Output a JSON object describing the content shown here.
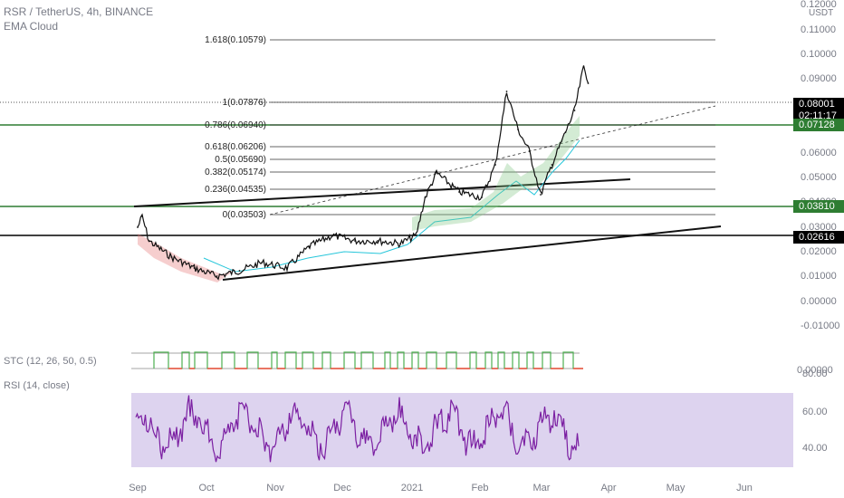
{
  "header": {
    "symbol_line": "RSR / TetherUS, 4h, BINANCE",
    "indicator": "EMA Cloud"
  },
  "price_axis": {
    "unit": "USDT",
    "top_label": "0.12000",
    "ticks": [
      "0.11000",
      "0.10000",
      "0.09000",
      "0.08000",
      "0.07000",
      "0.06000",
      "0.05000",
      "0.04000",
      "0.03000",
      "0.02000",
      "0.01000",
      "0.00000",
      "-0.01000"
    ]
  },
  "price_tags": {
    "last": {
      "price": "0.08001",
      "countdown": "02:11:17"
    },
    "green_upper": "0.07128",
    "green_lower": "0.03810",
    "black_level": "0.02616"
  },
  "fib_levels": [
    {
      "label": "1.618(0.10579)",
      "value": 0.10579
    },
    {
      "label": "1(0.07876)",
      "value": 0.07876
    },
    {
      "label": "0.786(0.06940)",
      "value": 0.0694
    },
    {
      "label": "0.618(0.06206)",
      "value": 0.06206
    },
    {
      "label": "0.5(0.05690)",
      "value": 0.0569
    },
    {
      "label": "0.382(0.05174)",
      "value": 0.05174
    },
    {
      "label": "0.236(0.04535)",
      "value": 0.04535
    },
    {
      "label": "0(0.03503)",
      "value": 0.03503
    }
  ],
  "stc": {
    "label": "STC (12, 26, 50, 0.5)",
    "axis_label": "0.00000"
  },
  "rsi": {
    "label": "RSI (14, close)",
    "ticks": [
      "80.00",
      "60.00",
      "40.00"
    ],
    "band": [
      30,
      70
    ]
  },
  "time_axis": [
    "Sep",
    "Oct",
    "Nov",
    "Dec",
    "2021",
    "Feb",
    "Mar",
    "Apr",
    "May",
    "Jun"
  ],
  "colors": {
    "green_level": "#2e7d32",
    "black_level": "#000000",
    "rsi_line": "#7b1fa2",
    "rsi_band": "#d1c4e9",
    "stc_up": "#4caf50",
    "stc_down": "#f44336",
    "ema_fast": "#26c6da",
    "cloud_bear": "#e57373",
    "cloud_bull": "#81c784",
    "last_tag_bg": "#000000",
    "green_tag_bg": "#2e7d32"
  },
  "chart_data": {
    "type": "candlestick",
    "title": "RSR / TetherUS, 4h, BINANCE",
    "ylim": [
      -0.015,
      0.12
    ],
    "price_path": [
      {
        "t": "Aug 31",
        "close": 0.027
      },
      {
        "t": "Sep 2",
        "close": 0.031
      },
      {
        "t": "Sep 5",
        "close": 0.022
      },
      {
        "t": "Sep 15",
        "close": 0.016
      },
      {
        "t": "Sep 25",
        "close": 0.012
      },
      {
        "t": "Oct 5",
        "close": 0.009
      },
      {
        "t": "Oct 15",
        "close": 0.011
      },
      {
        "t": "Oct 25",
        "close": 0.014
      },
      {
        "t": "Nov 5",
        "close": 0.012
      },
      {
        "t": "Nov 15",
        "close": 0.02
      },
      {
        "t": "Nov 25",
        "close": 0.024
      },
      {
        "t": "Dec 5",
        "close": 0.022
      },
      {
        "t": "Dec 15",
        "close": 0.022
      },
      {
        "t": "Dec 25",
        "close": 0.021
      },
      {
        "t": "Jan 1",
        "close": 0.024
      },
      {
        "t": "Jan 5",
        "close": 0.038
      },
      {
        "t": "Jan 10",
        "close": 0.047
      },
      {
        "t": "Jan 20",
        "close": 0.04
      },
      {
        "t": "Jan 30",
        "close": 0.038
      },
      {
        "t": "Feb 5",
        "close": 0.05
      },
      {
        "t": "Feb 10",
        "close": 0.077
      },
      {
        "t": "Feb 15",
        "close": 0.063
      },
      {
        "t": "Feb 20",
        "close": 0.055
      },
      {
        "t": "Feb 25",
        "close": 0.039
      },
      {
        "t": "Mar 2",
        "close": 0.05
      },
      {
        "t": "Mar 8",
        "close": 0.062
      },
      {
        "t": "Mar 12",
        "close": 0.07
      },
      {
        "t": "Mar 16",
        "close": 0.086
      },
      {
        "t": "Mar 18",
        "close": 0.08
      }
    ],
    "horizontal_levels": [
      0.07128,
      0.0381,
      0.02616
    ]
  }
}
